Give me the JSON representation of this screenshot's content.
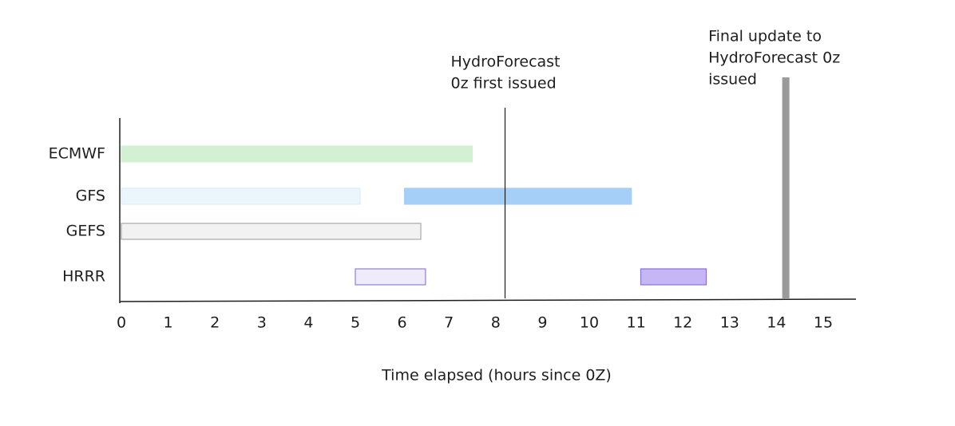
{
  "chart_data": {
    "type": "timeline",
    "xlabel": "Time elapsed (hours since 0Z)",
    "xlim": [
      0,
      15.7
    ],
    "xticks": [
      0,
      1,
      2,
      3,
      4,
      5,
      6,
      7,
      8,
      9,
      10,
      11,
      12,
      13,
      14,
      15
    ],
    "series": [
      {
        "name": "ECMWF",
        "ranges": [
          {
            "start": 0,
            "end": 7.5,
            "color": "#d3f0d3",
            "border": "#d3f0d3"
          }
        ]
      },
      {
        "name": "GFS",
        "ranges": [
          {
            "start": 0,
            "end": 5.1,
            "color": "#eaf6fb",
            "border": "#dcecf5"
          },
          {
            "start": 6.05,
            "end": 10.9,
            "color": "#a5cff7",
            "border": "#a5cff7"
          }
        ]
      },
      {
        "name": "GEFS",
        "ranges": [
          {
            "start": 0,
            "end": 6.4,
            "color": "#f1f2f1",
            "border": "#a8aaa8"
          }
        ]
      },
      {
        "name": "HRRR",
        "ranges": [
          {
            "start": 5.0,
            "end": 6.5,
            "color": "#efebfb",
            "border": "#8f7fd8"
          },
          {
            "start": 11.1,
            "end": 12.5,
            "color": "#c6b6f6",
            "border": "#8a72d8"
          }
        ]
      }
    ],
    "annotations": [
      {
        "x": 8.2,
        "color": "#1e1e1e",
        "lines": [
          "HydroForecast",
          "0z first issued"
        ]
      },
      {
        "x": 14.2,
        "color": "#9a9a9a",
        "lines": [
          "Final update to",
          "HydroForecast 0z",
          "issued"
        ]
      }
    ]
  }
}
